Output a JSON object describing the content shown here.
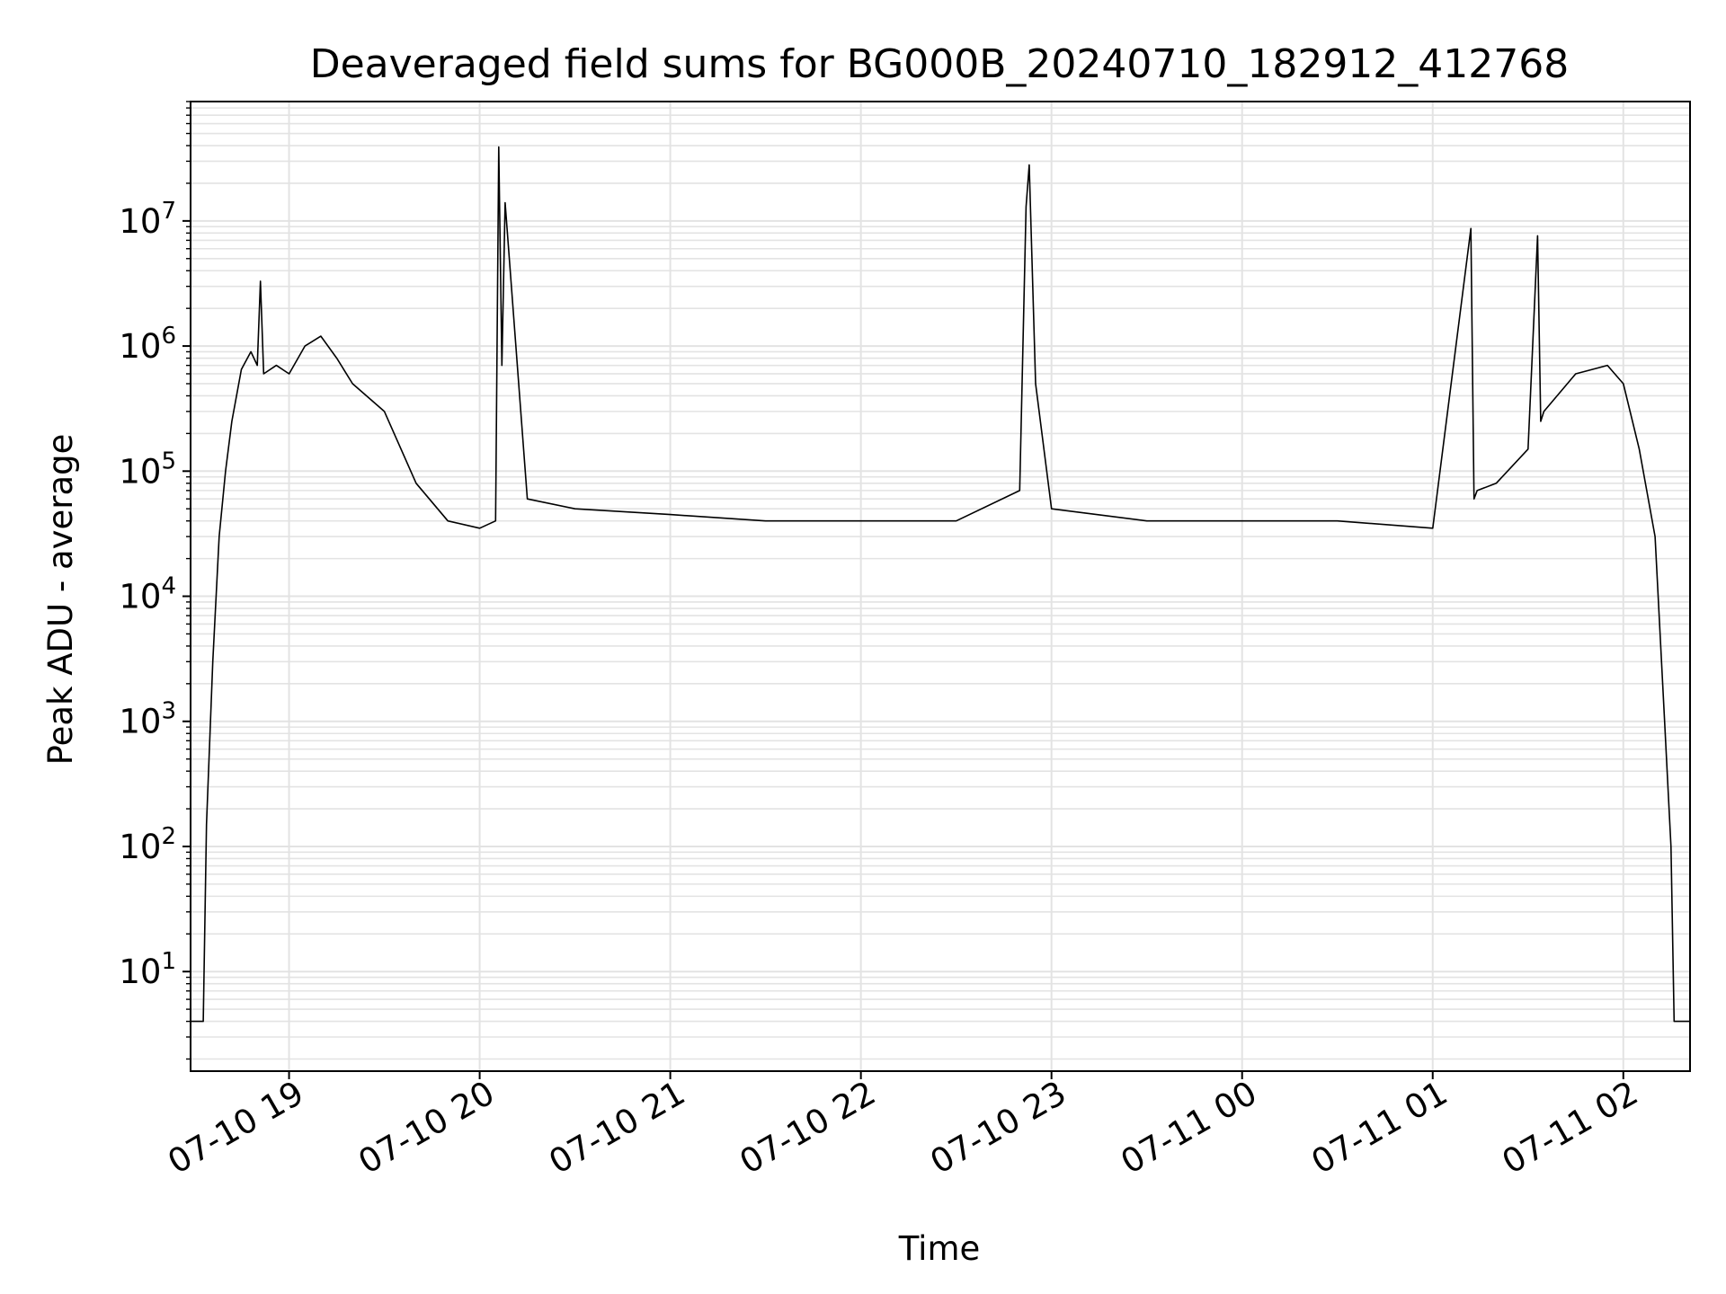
{
  "chart_data": {
    "type": "line",
    "title": "Deaveraged field sums for BG000B_20240710_182912_412768",
    "xlabel": "Time",
    "ylabel": "Peak ADU - average",
    "yscale": "log",
    "ylim": [
      1.6,
      90000000
    ],
    "xlim": [
      "2024-07-10 18:29",
      "2024-07-11 02:21"
    ],
    "grid": true,
    "line_color": "#000000",
    "grid_color": "#e3e3e3",
    "x_tick_labels": [
      "07-10 19",
      "07-10 20",
      "07-10 21",
      "07-10 22",
      "07-10 23",
      "07-11 00",
      "07-11 01",
      "07-11 02"
    ],
    "x_tick_values": [
      "2024-07-10 19:00",
      "2024-07-10 20:00",
      "2024-07-10 21:00",
      "2024-07-10 22:00",
      "2024-07-10 23:00",
      "2024-07-11 00:00",
      "2024-07-11 01:00",
      "2024-07-11 02:00"
    ],
    "y_tick_labels": [
      {
        "base": "10",
        "exp": "1"
      },
      {
        "base": "10",
        "exp": "2"
      },
      {
        "base": "10",
        "exp": "3"
      },
      {
        "base": "10",
        "exp": "4"
      },
      {
        "base": "10",
        "exp": "5"
      },
      {
        "base": "10",
        "exp": "6"
      },
      {
        "base": "10",
        "exp": "7"
      }
    ],
    "y_tick_values": [
      10,
      100,
      1000,
      10000,
      100000,
      1000000,
      10000000
    ],
    "series": [
      {
        "x": [
          "2024-07-10 18:29",
          "2024-07-10 18:33",
          "2024-07-10 18:34",
          "2024-07-10 18:36",
          "2024-07-10 18:38",
          "2024-07-10 18:40",
          "2024-07-10 18:42",
          "2024-07-10 18:45",
          "2024-07-10 18:48",
          "2024-07-10 18:50",
          "2024-07-10 18:51",
          "2024-07-10 18:52",
          "2024-07-10 18:56",
          "2024-07-10 19:00",
          "2024-07-10 19:05",
          "2024-07-10 19:10",
          "2024-07-10 19:15",
          "2024-07-10 19:20",
          "2024-07-10 19:30",
          "2024-07-10 19:40",
          "2024-07-10 19:50",
          "2024-07-10 20:00",
          "2024-07-10 20:05",
          "2024-07-10 20:06",
          "2024-07-10 20:07",
          "2024-07-10 20:08",
          "2024-07-10 20:15",
          "2024-07-10 20:30",
          "2024-07-10 21:00",
          "2024-07-10 21:30",
          "2024-07-10 22:00",
          "2024-07-10 22:30",
          "2024-07-10 22:50",
          "2024-07-10 22:52",
          "2024-07-10 22:53",
          "2024-07-10 22:55",
          "2024-07-10 23:00",
          "2024-07-10 23:30",
          "2024-07-11 00:00",
          "2024-07-11 00:30",
          "2024-07-11 01:00",
          "2024-07-11 01:12",
          "2024-07-11 01:13",
          "2024-07-11 01:14",
          "2024-07-11 01:20",
          "2024-07-11 01:30",
          "2024-07-11 01:33",
          "2024-07-11 01:34",
          "2024-07-11 01:35",
          "2024-07-11 01:45",
          "2024-07-11 01:55",
          "2024-07-11 02:00",
          "2024-07-11 02:05",
          "2024-07-11 02:10",
          "2024-07-11 02:13",
          "2024-07-11 02:15",
          "2024-07-11 02:16",
          "2024-07-11 02:21"
        ],
        "y": [
          4,
          4,
          150,
          3000,
          30000,
          100000,
          250000,
          650000,
          900000,
          700000,
          3300000,
          600000,
          700000,
          600000,
          1000000,
          1200000,
          800000,
          500000,
          300000,
          80000,
          40000,
          35000,
          40000,
          39000000,
          700000,
          14000000,
          60000,
          50000,
          45000,
          40000,
          40000,
          40000,
          70000,
          13000000,
          28000000,
          500000,
          50000,
          40000,
          40000,
          40000,
          35000,
          8700000,
          60000,
          70000,
          80000,
          150000,
          7600000,
          250000,
          300000,
          600000,
          700000,
          500000,
          150000,
          30000,
          1000,
          100,
          4,
          4
        ]
      }
    ]
  }
}
